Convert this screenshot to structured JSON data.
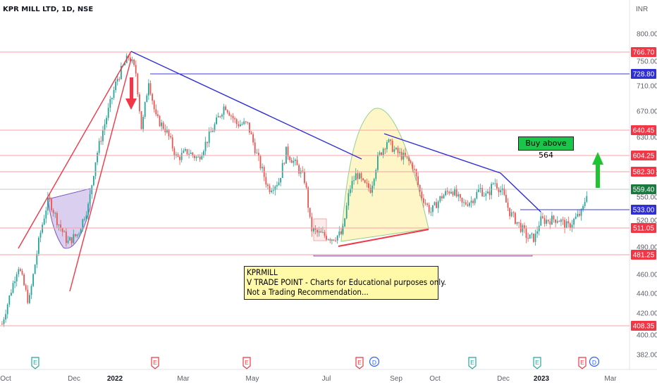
{
  "chart_data": {
    "type": "candlestick",
    "title": "KPR MILL LTD, 1D, NSE",
    "currency": "INR",
    "yticks": [
      382.0,
      400.0,
      420.0,
      440.0,
      460.0,
      490.0,
      520.0,
      550.0,
      580.0,
      630.0,
      670.0,
      710.0,
      750.0,
      800.0
    ],
    "xticks": [
      {
        "label": "Oct",
        "bold": false
      },
      {
        "label": "Dec",
        "bold": false
      },
      {
        "label": "2022",
        "bold": true
      },
      {
        "label": "Mar",
        "bold": false
      },
      {
        "label": "May",
        "bold": false
      },
      {
        "label": "Jul",
        "bold": false
      },
      {
        "label": "Sep",
        "bold": false
      },
      {
        "label": "Oct",
        "bold": false
      },
      {
        "label": "Dec",
        "bold": false
      },
      {
        "label": "2023",
        "bold": true
      },
      {
        "label": "Mar",
        "bold": false
      }
    ],
    "price_levels": [
      {
        "value": 766.7,
        "label": "766.70",
        "color": "#f23645"
      },
      {
        "value": 728.8,
        "label": "728.80",
        "color": "#2f2fd4"
      },
      {
        "value": 640.45,
        "label": "640.45",
        "color": "#f23645"
      },
      {
        "value": 604.25,
        "label": "604.25",
        "color": "#f23645"
      },
      {
        "value": 582.3,
        "label": "582.30",
        "color": "#f23645"
      },
      {
        "value": 559.4,
        "label": "559.40",
        "color": "#1a7a3e"
      },
      {
        "value": 533.0,
        "label": "533.00",
        "color": "#2f2fd4"
      },
      {
        "value": 511.05,
        "label": "511.05",
        "color": "#f23645"
      },
      {
        "value": 481.25,
        "label": "481.25",
        "color": "#f23645"
      },
      {
        "value": 408.35,
        "label": "408.35",
        "color": "#f23645"
      }
    ],
    "last_price": 559.4,
    "event_markers": [
      {
        "label": "E",
        "color": "#26a69a"
      },
      {
        "label": "E",
        "color": "#f23645"
      },
      {
        "label": "E",
        "color": "#f23645"
      },
      {
        "label": "E",
        "color": "#f23645"
      },
      {
        "label": "D",
        "color": "#2962ff"
      },
      {
        "label": "E",
        "color": "#26a69a"
      },
      {
        "label": "E",
        "color": "#26a69a"
      },
      {
        "label": "E",
        "color": "#f23645"
      },
      {
        "label": "D",
        "color": "#2962ff"
      }
    ],
    "up_color": "#26a69a",
    "down_color": "#ef5350"
  },
  "annotations": {
    "note_lines": [
      "KPRMILL",
      "V TRADE POINT - Charts for Educational purposes only.",
      "Not a Trading Recommendation..."
    ],
    "buy_label": "Buy above 564"
  }
}
